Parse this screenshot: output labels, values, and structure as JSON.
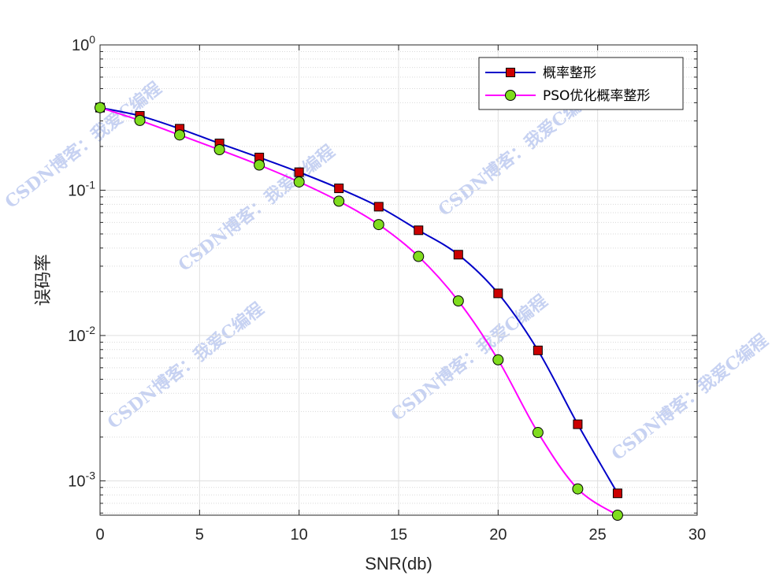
{
  "chart_data": {
    "type": "line",
    "xlabel": "SNR(db)",
    "ylabel": "误码率",
    "xlim": [
      0,
      30
    ],
    "ylim": [
      0.00058,
      1
    ],
    "y_scale": "log",
    "grid": true,
    "legend_position": "top-right",
    "x_ticks": [
      "0",
      "5",
      "10",
      "15",
      "20",
      "25",
      "30"
    ],
    "y_ticks": [
      {
        "base": "10",
        "exp": "0"
      },
      {
        "base": "10",
        "exp": "-1"
      },
      {
        "base": "10",
        "exp": "-2"
      },
      {
        "base": "10",
        "exp": "-3"
      }
    ],
    "x": [
      0,
      2,
      4,
      6,
      8,
      10,
      12,
      14,
      16,
      18,
      20,
      22,
      24,
      26
    ],
    "series": [
      {
        "name": "概率整形",
        "color": "#0000c8",
        "marker": "square",
        "marker_fill": "#cc0000",
        "values": [
          0.37,
          0.325,
          0.265,
          0.21,
          0.168,
          0.133,
          0.103,
          0.077,
          0.053,
          0.036,
          0.0195,
          0.0079,
          0.00245,
          0.00082
        ]
      },
      {
        "name": "PSO优化概率整形",
        "color": "#ff00ff",
        "marker": "circle",
        "marker_fill": "#7fdc1e",
        "values": [
          0.37,
          0.302,
          0.24,
          0.19,
          0.149,
          0.114,
          0.084,
          0.058,
          0.035,
          0.0173,
          0.0068,
          0.00215,
          0.00088,
          0.00058
        ]
      }
    ],
    "watermark": "CSDN博客：我爱C编程"
  }
}
